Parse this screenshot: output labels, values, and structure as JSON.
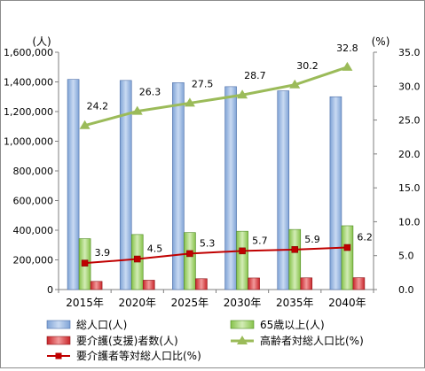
{
  "chart_data": {
    "type": "bar",
    "categories": [
      "2015年",
      "2020年",
      "2025年",
      "2030年",
      "2035年",
      "2040年"
    ],
    "left_axis": {
      "unit": "(人)",
      "range": [
        0,
        1600000
      ],
      "ticks": [
        "0",
        "200,000",
        "400,000",
        "600,000",
        "800,000",
        "1,000,000",
        "1,200,000",
        "1,400,000",
        "1,600,000"
      ]
    },
    "right_axis": {
      "unit": "(%)",
      "range": [
        0,
        35
      ],
      "ticks": [
        "0.0",
        "5.0",
        "10.0",
        "15.0",
        "20.0",
        "25.0",
        "30.0",
        "35.0"
      ]
    },
    "series": [
      {
        "name": "総人口(人)",
        "type": "bar",
        "axis": "left",
        "color": "#8eb4e3",
        "values": [
          1417000,
          1410000,
          1395000,
          1368000,
          1340000,
          1300000
        ]
      },
      {
        "name": "65歳以上(人)",
        "type": "bar",
        "axis": "left",
        "color": "#9bd05f",
        "values": [
          343000,
          371000,
          384000,
          393000,
          405000,
          430000
        ]
      },
      {
        "name": "要介護(支援)者数(人)",
        "type": "bar",
        "axis": "left",
        "color": "#e0393c",
        "values": [
          55000,
          63000,
          73000,
          78000,
          79000,
          80000
        ]
      },
      {
        "name": "高齢者対総人口比(%)",
        "type": "line",
        "axis": "right",
        "color": "#9bbb59",
        "marker": "triangle",
        "values": [
          24.2,
          26.3,
          27.5,
          28.7,
          30.2,
          32.8
        ],
        "labels": [
          "24.2",
          "26.3",
          "27.5",
          "28.7",
          "30.2",
          "32.8"
        ]
      },
      {
        "name": "要介護者等対総人口比(%)",
        "type": "line",
        "axis": "right",
        "color": "#c00000",
        "marker": "square",
        "values": [
          3.9,
          4.5,
          5.3,
          5.7,
          5.9,
          6.2
        ],
        "labels": [
          "3.9",
          "4.5",
          "5.3",
          "5.7",
          "5.9",
          "6.2"
        ]
      }
    ],
    "grid": false,
    "legend": "bottom"
  }
}
